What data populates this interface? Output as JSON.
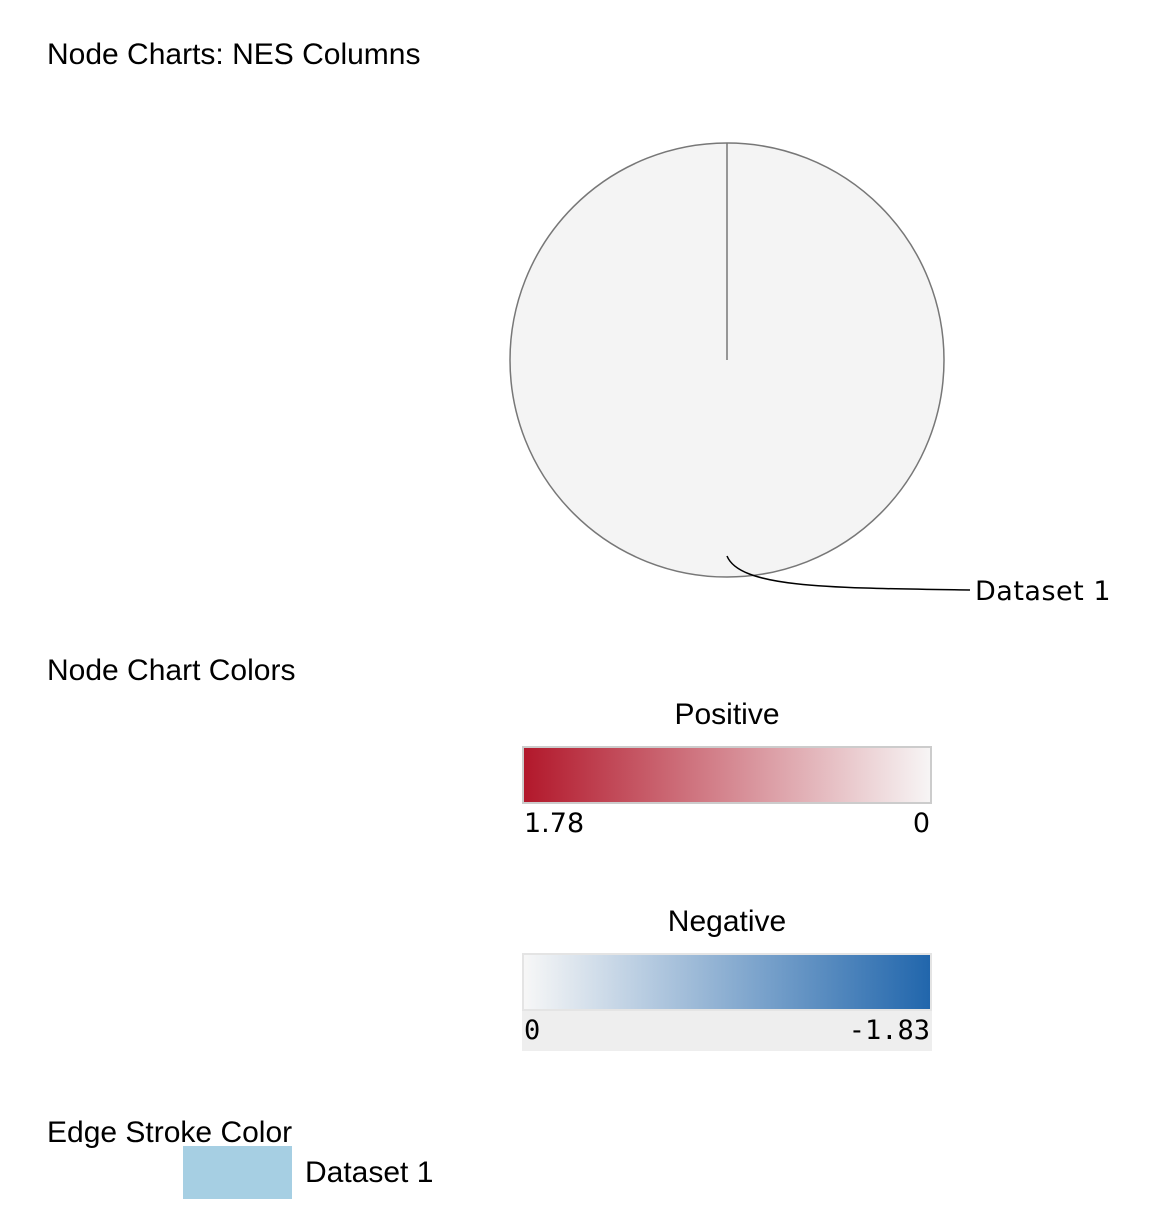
{
  "node_charts": {
    "title": "Node Charts: NES Columns",
    "pie": {
      "slice_label": "Dataset 1",
      "fill_color": "#f4f4f4",
      "stroke_color": "#777777"
    }
  },
  "node_chart_colors": {
    "title": "Node Chart Colors",
    "positive": {
      "label": "Positive",
      "min_label": "1.78",
      "max_label": "0",
      "color_start": "#b2182b",
      "color_end": "#f7f5f5"
    },
    "negative": {
      "label": "Negative",
      "min_label": "0",
      "max_label": "-1.83",
      "color_start": "#f7f7f7",
      "color_end": "#2166ac"
    }
  },
  "edge_stroke": {
    "title": "Edge Stroke Color",
    "legend_label": "Dataset 1",
    "swatch_color": "#a6cfe3"
  }
}
